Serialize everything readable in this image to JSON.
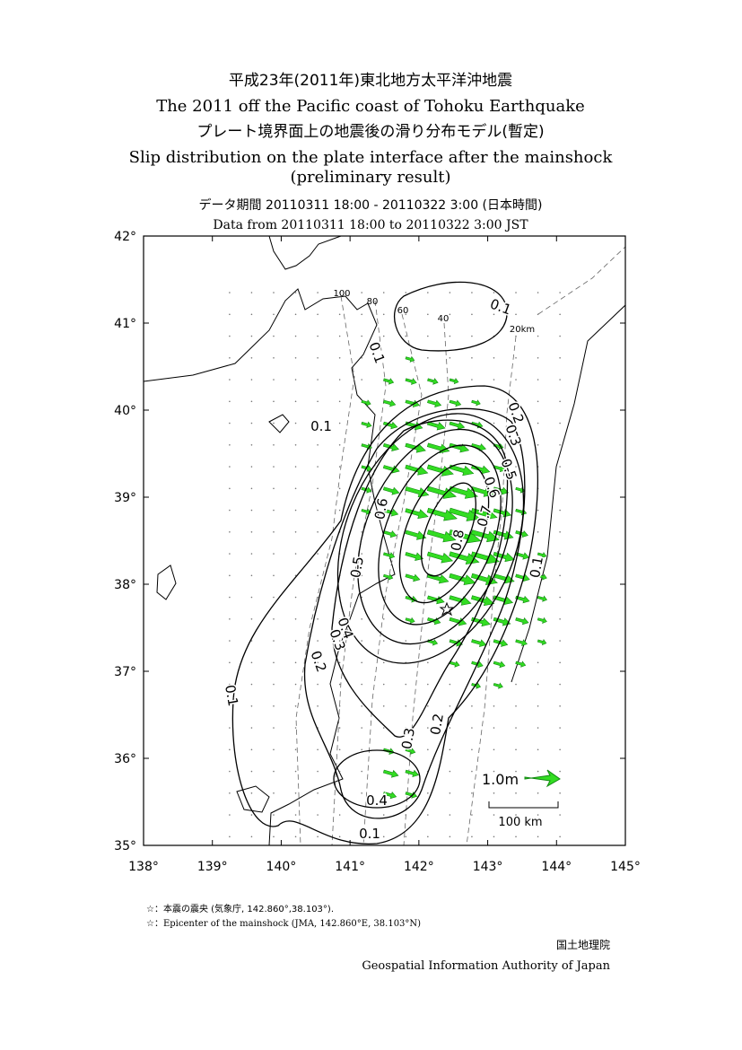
{
  "header": {
    "title_ja": "平成23年(2011年)東北地方太平洋沖地震",
    "title_en": "The 2011 off the Pacific coast of Tohoku Earthquake",
    "subtitle_ja": "プレート境界面上の地震後の滑り分布モデル(暫定)",
    "subtitle_en": "Slip distribution on the plate interface after the mainshock",
    "subtitle_en_note": "(preliminary result)",
    "period_ja": "データ期間 20110311 18:00 - 20110322 3:00 (日本時間)",
    "period_en": "Data from 20110311 18:00 to 20110322 3:00 JST"
  },
  "map": {
    "xlim": [
      138,
      145
    ],
    "ylim": [
      35,
      42
    ],
    "xticks": [
      {
        "value": 138,
        "label": "138°"
      },
      {
        "value": 139,
        "label": "139°"
      },
      {
        "value": 140,
        "label": "140°"
      },
      {
        "value": 141,
        "label": "141°"
      },
      {
        "value": 142,
        "label": "142°"
      },
      {
        "value": 143,
        "label": "143°"
      },
      {
        "value": 144,
        "label": "144°"
      },
      {
        "value": 145,
        "label": "145°"
      }
    ],
    "yticks": [
      {
        "value": 35,
        "label": "35°"
      },
      {
        "value": 36,
        "label": "36°"
      },
      {
        "value": 37,
        "label": "37°"
      },
      {
        "value": 38,
        "label": "38°"
      },
      {
        "value": 39,
        "label": "39°"
      },
      {
        "value": 40,
        "label": "40°"
      },
      {
        "value": 41,
        "label": "41°"
      },
      {
        "value": 42,
        "label": "42°"
      }
    ],
    "slip_contour_labels": [
      "0.1",
      "0.1",
      "0.1",
      "0.2",
      "0.3",
      "0.5",
      "0.6",
      "0.6",
      "0.7",
      "0.8",
      "0.5",
      "0.1",
      "0.4",
      "0.3",
      "0.2",
      "0.1",
      "0.3",
      "0.2",
      "0.4",
      "0.1"
    ],
    "depth_contour_labels": [
      "100",
      "80",
      "60",
      "40",
      "20km"
    ],
    "scale_arrow_label": "1.0m",
    "scale_bar_label": "100 km"
  },
  "notes": [
    "☆：本震の震央 (気象庁, 142.860°,38.103°).",
    "☆：Epicenter of the mainshock (JMA, 142.860°E, 38.103°N)"
  ],
  "footer": {
    "org_ja": "国土地理院",
    "org_en": "Geospatial Information Authority of Japan"
  }
}
